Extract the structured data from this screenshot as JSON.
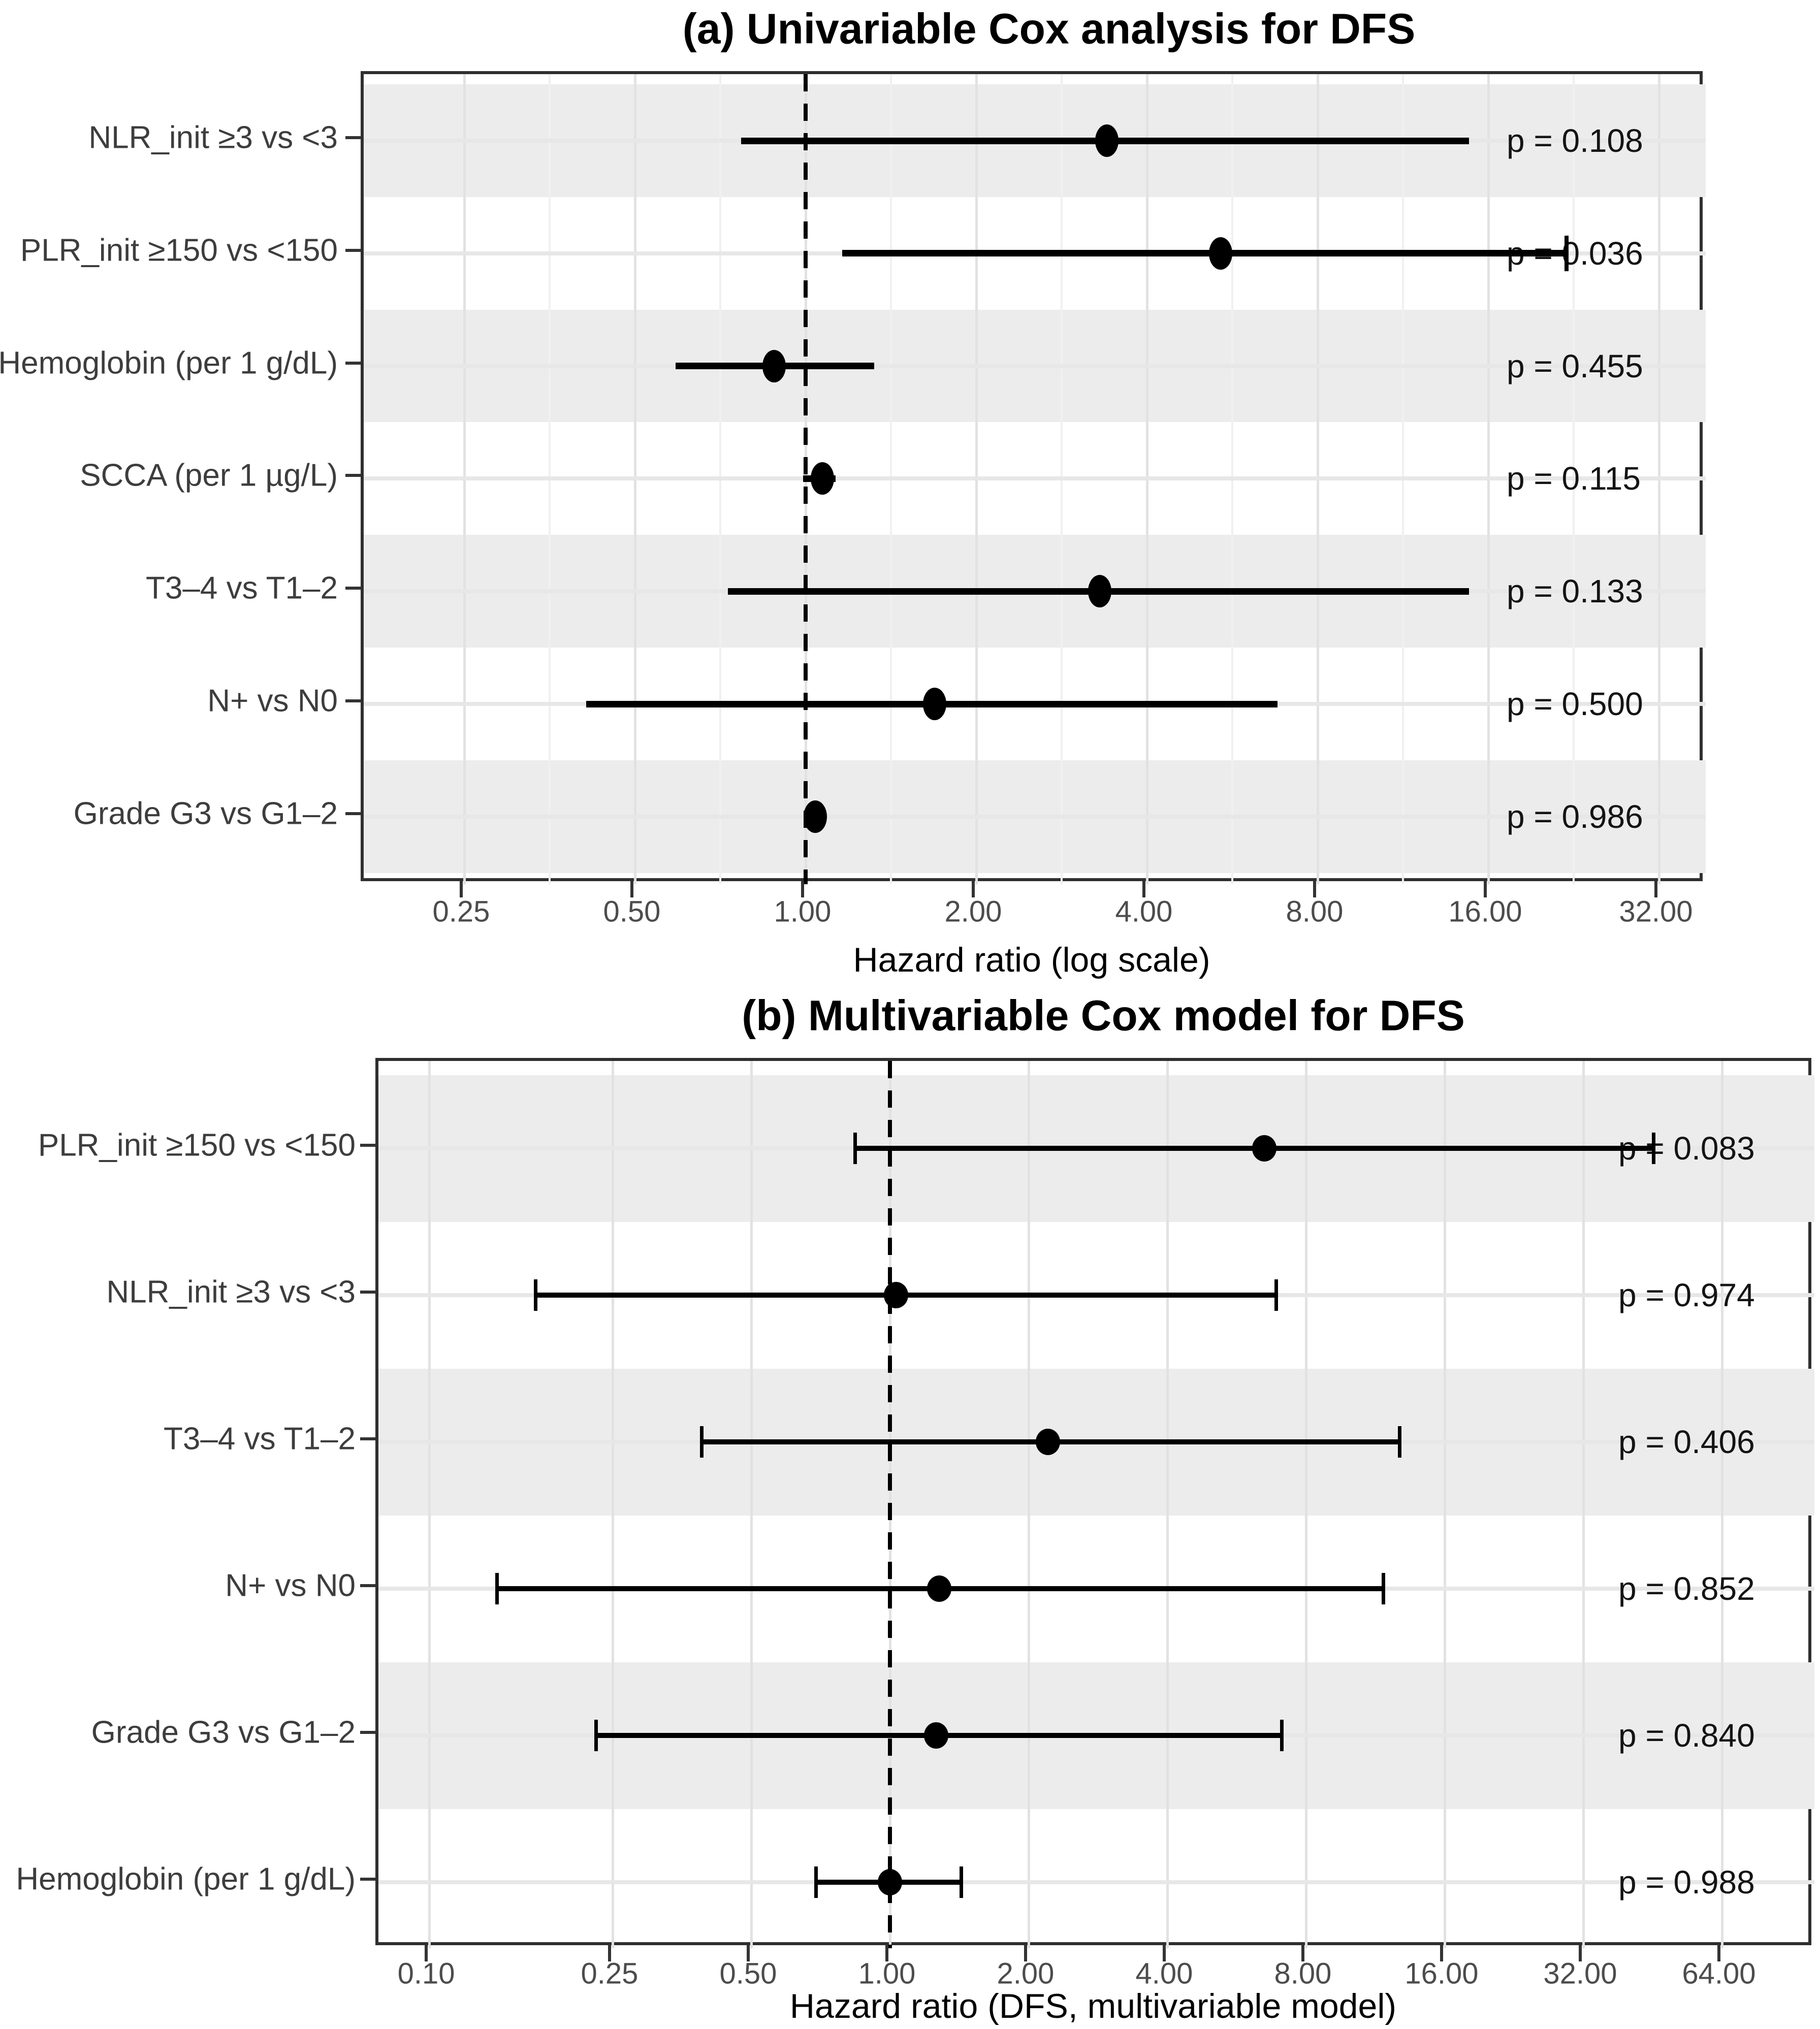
{
  "figure": {
    "background": "#ffffff",
    "point_color": "#000000",
    "band_color": "#ececec",
    "reference_line_style": "dashed",
    "reference_line_value": 1.0
  },
  "chart_data": [
    {
      "type": "scatter",
      "variant": "forest-plot (horizontal error bars, log scale)",
      "title": "(a) Univariable Cox analysis for DFS",
      "xlabel": "Hazard ratio (log scale)",
      "x_axis": {
        "scale": "log2",
        "range": [
          0.17,
          38.7
        ],
        "ticks": [
          0.25,
          0.5,
          1,
          2,
          4,
          8,
          16,
          32
        ],
        "tick_labels": [
          "0.25",
          "0.50",
          "1.00",
          "2.00",
          "4.00",
          "8.00",
          "16.00",
          "32.00"
        ],
        "minor_gridlines": true
      },
      "ref_line": 1.0,
      "error_bar_caps": false,
      "rows": [
        {
          "label": "NLR_init ≥3 vs <3",
          "hr": 3.4,
          "ci_low": 0.77,
          "ci_high": 14.8,
          "p": 0.108,
          "p_label": "p = 0.108"
        },
        {
          "label": "PLR_init ≥150 vs <150",
          "hr": 5.4,
          "ci_low": 1.16,
          "ci_high": 22.0,
          "p": 0.036,
          "p_label": "p = 0.036",
          "cap_high": true
        },
        {
          "label": "Hemoglobin (per 1 g/dL)",
          "hr": 0.88,
          "ci_low": 0.59,
          "ci_high": 1.32,
          "p": 0.455,
          "p_label": "p = 0.455"
        },
        {
          "label": "SCCA (per 1 µg/L)",
          "hr": 1.07,
          "ci_low": 0.99,
          "ci_high": 1.13,
          "p": 0.115,
          "p_label": "p = 0.115"
        },
        {
          "label": "T3–4 vs T1–2",
          "hr": 3.3,
          "ci_low": 0.73,
          "ci_high": 14.8,
          "p": 0.133,
          "p_label": "p = 0.133"
        },
        {
          "label": "N+ vs N0",
          "hr": 1.69,
          "ci_low": 0.41,
          "ci_high": 6.8,
          "p": 0.5,
          "p_label": "p = 0.500"
        },
        {
          "label": "Grade G3 vs G1–2",
          "hr": 1.04,
          "ci_low": null,
          "ci_high": null,
          "p": 0.986,
          "p_label": "p = 0.986"
        }
      ]
    },
    {
      "type": "scatter",
      "variant": "forest-plot (horizontal error bars with caps, log scale)",
      "title": "(b) Multivariable Cox model for DFS",
      "xlabel": "Hazard ratio (DFS, multivariable model)",
      "x_axis": {
        "scale": "log2",
        "range": [
          0.078,
          101
        ],
        "ticks": [
          0.1,
          0.25,
          0.5,
          1,
          2,
          4,
          8,
          16,
          32,
          64
        ],
        "tick_labels": [
          "0.10",
          "0.25",
          "0.50",
          "1.00",
          "2.00",
          "4.00",
          "8.00",
          "16.00",
          "32.00",
          "64.00"
        ],
        "minor_gridlines": false
      },
      "ref_line": 1.0,
      "error_bar_caps": true,
      "rows": [
        {
          "label": "PLR_init ≥150 vs <150",
          "hr": 6.5,
          "ci_low": 0.84,
          "ci_high": 45.5,
          "p": 0.083,
          "p_label": "p = 0.083"
        },
        {
          "label": "NLR_init ≥3 vs <3",
          "hr": 1.03,
          "ci_low": 0.17,
          "ci_high": 6.9,
          "p": 0.974,
          "p_label": "p = 0.974"
        },
        {
          "label": "T3–4 vs T1–2",
          "hr": 2.2,
          "ci_low": 0.39,
          "ci_high": 12.8,
          "p": 0.406,
          "p_label": "p = 0.406"
        },
        {
          "label": "N+ vs N0",
          "hr": 1.28,
          "ci_low": 0.14,
          "ci_high": 11.8,
          "p": 0.852,
          "p_label": "p = 0.852"
        },
        {
          "label": "Grade G3 vs G1–2",
          "hr": 1.26,
          "ci_low": 0.23,
          "ci_high": 7.1,
          "p": 0.84,
          "p_label": "p = 0.840"
        },
        {
          "label": "Hemoglobin (per 1 g/dL)",
          "hr": 1.0,
          "ci_low": 0.69,
          "ci_high": 1.43,
          "p": 0.988,
          "p_label": "p = 0.988"
        }
      ]
    }
  ]
}
